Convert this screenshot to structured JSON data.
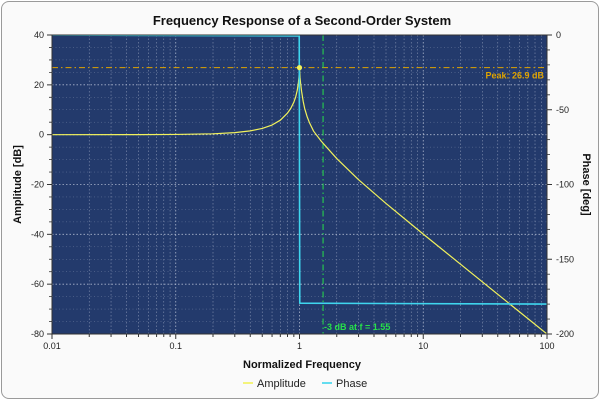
{
  "chart_data": {
    "type": "line",
    "title": "Frequency Response of a Second-Order System",
    "xlabel": "Normalized Frequency",
    "ylabel_left": "Amplitude [dB]",
    "ylabel_right": "Phase [deg]",
    "x_scale": "log",
    "xlim": [
      0.01,
      100
    ],
    "ylim_left": [
      -80,
      40
    ],
    "ylim_right": [
      -200,
      0
    ],
    "x_ticks": [
      0.01,
      0.1,
      1,
      10,
      100
    ],
    "x_tick_labels": [
      "0.01",
      "0.1",
      "1",
      "10",
      "100"
    ],
    "y_left_ticks": [
      40,
      20,
      0,
      -20,
      -40,
      -60,
      -80
    ],
    "y_left_tick_labels": [
      "40",
      "20",
      "0",
      "-20",
      "-40",
      "-60",
      "-80"
    ],
    "y_right_ticks": [
      0,
      -50,
      -100,
      -150,
      -200
    ],
    "y_right_tick_labels": [
      "0",
      "-50",
      "-100",
      "-150",
      "-200"
    ],
    "grid": true,
    "legend_position": "bottom-center",
    "series": [
      {
        "name": "Amplitude",
        "axis": "left",
        "color": "#f2f25c",
        "x": [
          0.01,
          0.05,
          0.1,
          0.2,
          0.3,
          0.4,
          0.5,
          0.6,
          0.7,
          0.8,
          0.85,
          0.9,
          0.93,
          0.96,
          0.98,
          0.99,
          1.0,
          1.01,
          1.02,
          1.04,
          1.07,
          1.1,
          1.15,
          1.2,
          1.3,
          1.5,
          2,
          3,
          5,
          10,
          20,
          50,
          100
        ],
        "y": [
          0,
          0.02,
          0.09,
          0.35,
          0.82,
          1.51,
          2.5,
          3.87,
          5.81,
          8.67,
          10.55,
          13.04,
          15.02,
          17.91,
          20.94,
          23.18,
          26.94,
          23.01,
          20.77,
          17.34,
          13.46,
          10.58,
          7.35,
          4.95,
          1.4,
          -2.64,
          -9.58,
          -18.07,
          -27.61,
          -39.91,
          -51.98,
          -67.96,
          -80.0
        ]
      },
      {
        "name": "Phase",
        "axis": "right",
        "color": "#3fd6ee",
        "x": [
          0.01,
          0.995,
          1.0,
          1.005,
          100
        ],
        "y": [
          0,
          -0.6,
          -90,
          -179.4,
          -180
        ]
      }
    ],
    "annotations": [
      {
        "type": "hline",
        "axis": "left",
        "y": 26.9,
        "color": "#e0a400",
        "text": "Peak: 26.9 dB"
      },
      {
        "type": "vline",
        "x": 1.55,
        "color": "#27e04a",
        "text": "-3 dB at f = 1.55"
      }
    ],
    "colors": {
      "plot_bg": "#233a6c",
      "grid": "#b9c2d6"
    }
  }
}
